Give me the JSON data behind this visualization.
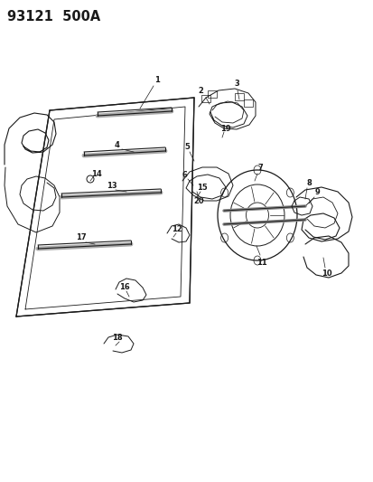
{
  "title": "93121  500A",
  "bg_color": "#ffffff",
  "line_color": "#1a1a1a",
  "fig_width": 4.14,
  "fig_height": 5.33,
  "dpi": 100,
  "title_fontsize": 10.5
}
